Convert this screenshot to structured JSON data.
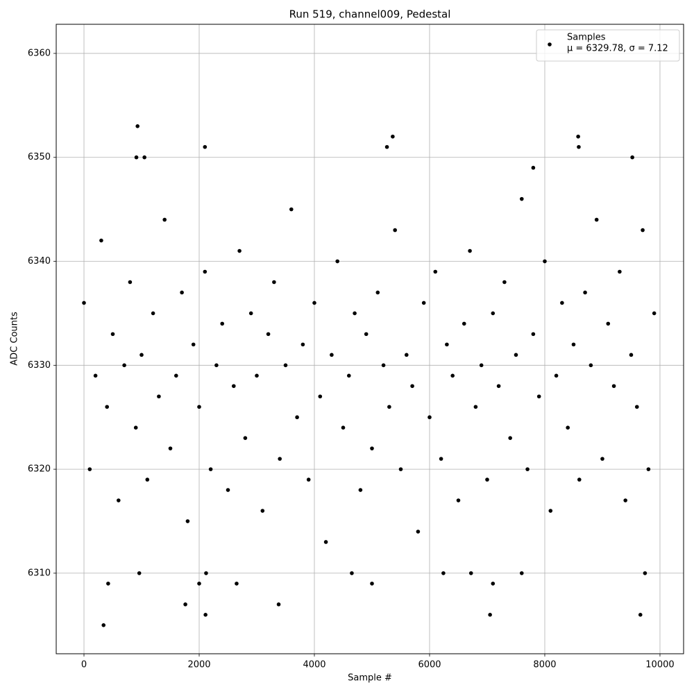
{
  "chart_data": {
    "type": "scatter",
    "title": "Run 519, channel009, Pedestal",
    "x_label": "Sample #",
    "y_label": "ADC Counts",
    "xlim": [
      -482,
      10410
    ],
    "ylim": [
      6302.25,
      6362.8
    ],
    "xticks": [
      0,
      2000,
      4000,
      6000,
      8000,
      10000
    ],
    "yticks": [
      6310,
      6320,
      6330,
      6340,
      6350,
      6360
    ],
    "grid": true,
    "legend": "upper right",
    "legend_annotation": "μ = 6329.78, σ = 7.12",
    "series": [
      {
        "name": "Samples",
        "color": "#000000",
        "x": [
          0,
          100,
          200,
          300,
          400,
          500,
          600,
          700,
          800,
          900,
          1000,
          1100,
          1200,
          1300,
          1400,
          1500,
          1600,
          1700,
          1800,
          1900,
          2000,
          2100,
          2200,
          2300,
          2400,
          2500,
          2600,
          2700,
          2800,
          2900,
          3000,
          3100,
          3200,
          3300,
          3400,
          3500,
          3600,
          3700,
          3800,
          3900,
          4000,
          4100,
          4200,
          4300,
          4400,
          4500,
          4600,
          4700,
          4800,
          4900,
          5000,
          5100,
          5200,
          5300,
          5400,
          5500,
          5600,
          5700,
          5800,
          5900,
          6000,
          6100,
          6200,
          6300,
          6400,
          6500,
          6600,
          6700,
          6800,
          6900,
          7000,
          7100,
          7200,
          7300,
          7400,
          7500,
          7600,
          7700,
          7800,
          7900,
          8000,
          8100,
          8200,
          8300,
          8400,
          8500,
          8600,
          8700,
          8800,
          8900,
          9000,
          9100,
          9200,
          9300,
          9400,
          9500,
          9600,
          9700,
          9800,
          9900,
          340,
          930,
          910,
          1050,
          2100,
          2110,
          3380,
          1760,
          5260,
          5360,
          8580,
          8590,
          9520,
          7800,
          9660,
          7050,
          420,
          2000,
          2650,
          5000,
          7100,
          960,
          2120,
          4650,
          6240,
          6720,
          7600,
          9740
        ],
        "values": [
          6336,
          6320,
          6329,
          6342,
          6326,
          6333,
          6317,
          6330,
          6338,
          6324,
          6331,
          6319,
          6335,
          6327,
          6344,
          6322,
          6329,
          6337,
          6315,
          6332,
          6326,
          6339,
          6320,
          6330,
          6334,
          6318,
          6328,
          6341,
          6323,
          6335,
          6329,
          6316,
          6333,
          6338,
          6321,
          6330,
          6345,
          6325,
          6332,
          6319,
          6336,
          6327,
          6313,
          6331,
          6340,
          6324,
          6329,
          6335,
          6318,
          6333,
          6322,
          6337,
          6330,
          6326,
          6343,
          6320,
          6331,
          6328,
          6314,
          6336,
          6325,
          6339,
          6321,
          6332,
          6329,
          6317,
          6334,
          6341,
          6326,
          6330,
          6319,
          6335,
          6328,
          6338,
          6323,
          6331,
          6346,
          6320,
          6333,
          6327,
          6340,
          6316,
          6329,
          6336,
          6324,
          6332,
          6319,
          6337,
          6330,
          6344,
          6321,
          6334,
          6328,
          6339,
          6317,
          6331,
          6326,
          6343,
          6320,
          6335,
          6305,
          6353,
          6350,
          6350,
          6351,
          6306,
          6307,
          6307,
          6351,
          6352,
          6352,
          6351,
          6350,
          6349,
          6306,
          6306,
          6309,
          6309,
          6309,
          6309,
          6309,
          6310,
          6310,
          6310,
          6310,
          6310,
          6310,
          6310
        ]
      }
    ]
  }
}
